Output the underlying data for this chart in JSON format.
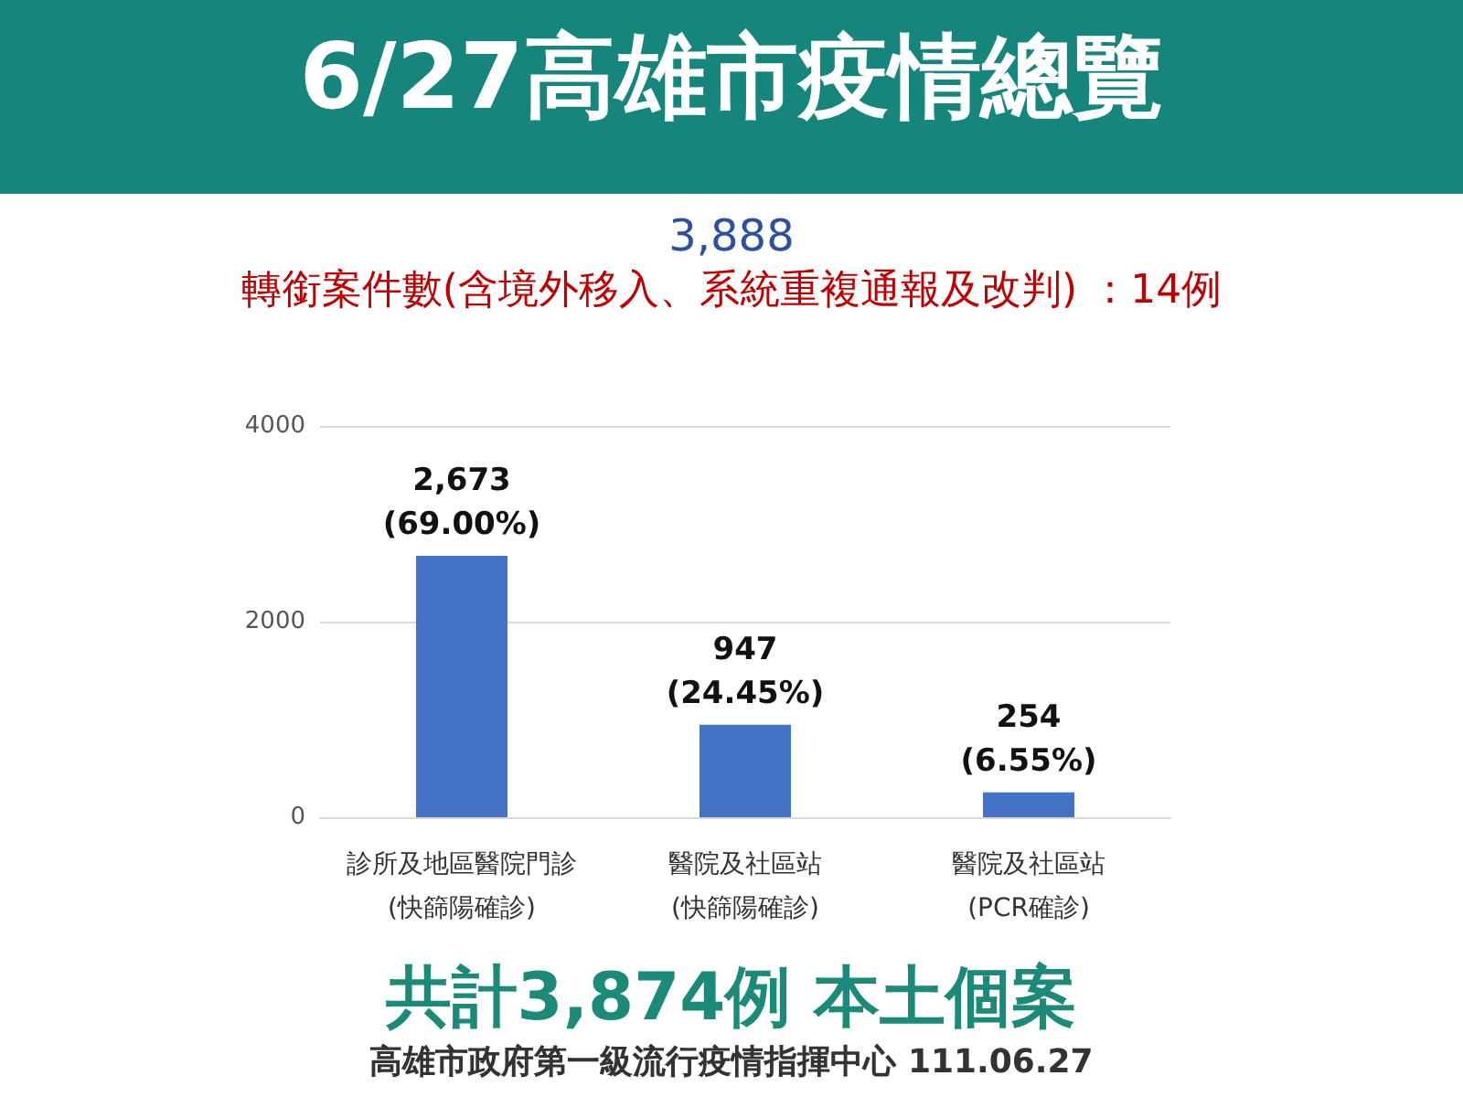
{
  "chart_data": {
    "type": "bar",
    "title": "6/27高雄市疫情總覽",
    "subtitle": "3,888",
    "annotations": [
      "轉銜案件數(含境外移入、系統重複通報及改判) ：14例",
      "共計3,874例 本土個案",
      "高雄市政府第一級流行疫情指揮中心 111.06.27"
    ],
    "categories": [
      "診所及地區醫院門診\n(快篩陽確診)",
      "醫院及社區站\n(快篩陽確診)",
      "醫院及社區站\n(PCR確診)"
    ],
    "values": [
      2673,
      947,
      254
    ],
    "value_labels": [
      "2,673\n(69.00%)",
      "947\n(24.45%)",
      "254\n(6.55%)"
    ],
    "color": "#4472c4",
    "ylim": [
      0,
      4000
    ],
    "yticks": [
      0,
      2000,
      4000
    ],
    "grid": "y"
  }
}
